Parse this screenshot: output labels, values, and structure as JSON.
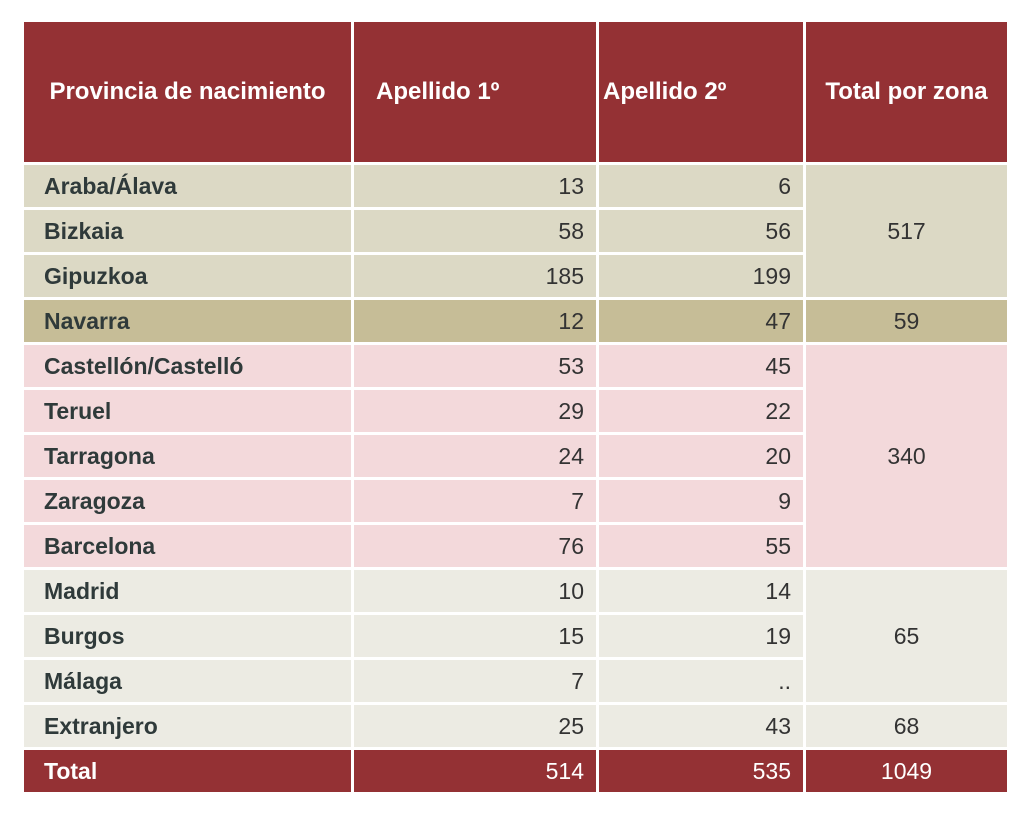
{
  "header": {
    "provincia": "Provincia de nacimiento",
    "apellido1": "Apellido 1º",
    "apellido2": "Apellido 2º",
    "total_zona": "Total por zona"
  },
  "rows": [
    {
      "provincia": "Araba/Álava",
      "ap1": "13",
      "ap2": "6"
    },
    {
      "provincia": "Bizkaia",
      "ap1": "58",
      "ap2": "56"
    },
    {
      "provincia": "Gipuzkoa",
      "ap1": "185",
      "ap2": "199"
    },
    {
      "provincia": "Navarra",
      "ap1": "12",
      "ap2": "47"
    },
    {
      "provincia": "Castellón/Castelló",
      "ap1": "53",
      "ap2": "45"
    },
    {
      "provincia": "Teruel",
      "ap1": "29",
      "ap2": "22"
    },
    {
      "provincia": "Tarragona",
      "ap1": "24",
      "ap2": "20"
    },
    {
      "provincia": "Zaragoza",
      "ap1": "7",
      "ap2": "9"
    },
    {
      "provincia": "Barcelona",
      "ap1": "76",
      "ap2": "55"
    },
    {
      "provincia": "Madrid",
      "ap1": "10",
      "ap2": "14"
    },
    {
      "provincia": "Burgos",
      "ap1": "15",
      "ap2": "19"
    },
    {
      "provincia": "Málaga",
      "ap1": "7",
      "ap2": ".."
    },
    {
      "provincia": "Extranjero",
      "ap1": "25",
      "ap2": "43"
    }
  ],
  "zonas": {
    "euskadi": "517",
    "navarra": "59",
    "aragon_cat": "340",
    "resto": "65",
    "extranjero": "68"
  },
  "total": {
    "label": "Total",
    "ap1": "514",
    "ap2": "535",
    "zona": "1049"
  },
  "colors": {
    "header": "#943134",
    "group_euskadi": "#dcd9c5",
    "group_navarra": "#c6bd97",
    "group_aragon_cat": "#f3d9db",
    "group_resto": "#ecebe3"
  }
}
